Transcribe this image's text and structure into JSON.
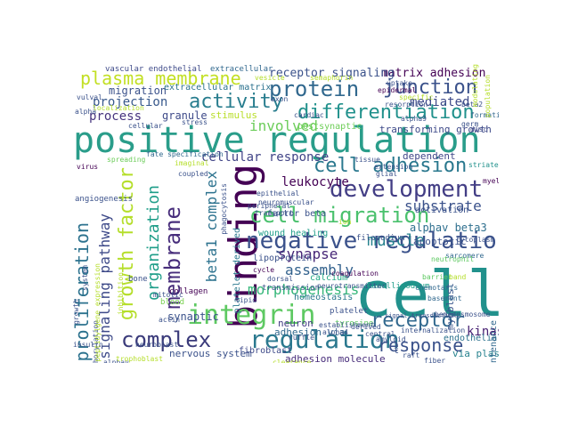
{
  "palette": {
    "background": "#ffffff",
    "dark_purple": "#440154",
    "indigo": "#3b528b",
    "blue": "#31688e",
    "teal": "#21918c",
    "green": "#35b779",
    "lime": "#90d743",
    "yellow": "#fde725"
  },
  "words": [
    {
      "text": "cell",
      "color": "#21918c"
    },
    {
      "text": "positive regulation",
      "color": "#2a9d8a"
    },
    {
      "text": "binding",
      "color": "#440154"
    },
    {
      "text": "integrin",
      "color": "#5ec962"
    },
    {
      "text": "regulation",
      "color": "#2a788e"
    },
    {
      "text": "negative regulation",
      "color": "#3b528b"
    },
    {
      "text": "development",
      "color": "#433e85"
    },
    {
      "text": "cell migration",
      "color": "#4ac16d"
    },
    {
      "text": "cell adhesion",
      "color": "#2a788e"
    },
    {
      "text": "protein",
      "color": "#31688e"
    },
    {
      "text": "complex",
      "color": "#3a3a7a"
    },
    {
      "text": "differentiation",
      "color": "#21918c"
    },
    {
      "text": "activity",
      "color": "#287d8e"
    },
    {
      "text": "plasma membrane",
      "color": "#c2df23"
    },
    {
      "text": "junction",
      "color": "#3b528b"
    },
    {
      "text": "membrane",
      "color": "#472d7b"
    },
    {
      "text": "growth factor",
      "color": "#b5de2b"
    },
    {
      "text": "receptor",
      "color": "#31688e"
    },
    {
      "text": "response",
      "color": "#3b528b"
    },
    {
      "text": "proliferation",
      "color": "#2c728e"
    },
    {
      "text": "signaling pathway",
      "color": "#3e4a89"
    },
    {
      "text": "organization",
      "color": "#1f9e89"
    },
    {
      "text": "beta1 complex",
      "color": "#2c728e"
    },
    {
      "text": "morphogenesis",
      "color": "#35b779"
    },
    {
      "text": "muscle",
      "color": "#26828e"
    },
    {
      "text": "assembly",
      "color": "#33628d"
    },
    {
      "text": "synapse",
      "color": "#482878"
    },
    {
      "text": "leukocyte",
      "color": "#440154"
    },
    {
      "text": "substrate",
      "color": "#3b528b"
    },
    {
      "text": "cellular response",
      "color": "#414487"
    },
    {
      "text": "involved",
      "color": "#6ccd5a"
    },
    {
      "text": "process",
      "color": "#46337e"
    },
    {
      "text": "projection",
      "color": "#38598c"
    },
    {
      "text": "migration",
      "color": "#3b528b"
    },
    {
      "text": "matrix adhesion",
      "color": "#440154"
    },
    {
      "text": "mediated",
      "color": "#3e4a89"
    },
    {
      "text": "receptor signaling",
      "color": "#3b528b"
    },
    {
      "text": "kinase",
      "color": "#482173"
    },
    {
      "text": "extracellular matrix",
      "color": "#2c728e"
    },
    {
      "text": "granule",
      "color": "#3e4a89"
    },
    {
      "text": "stimulus",
      "color": "#b8de29"
    },
    {
      "text": "postsynaptic",
      "color": "#6ece58"
    },
    {
      "text": "transforming growth",
      "color": "#3e4a89"
    },
    {
      "text": "dependent",
      "color": "#404688"
    },
    {
      "text": "platelet derived",
      "color": "#2a788e"
    },
    {
      "text": "alphav beta3",
      "color": "#2e6f8e"
    },
    {
      "text": "apoptotic",
      "color": "#3b528b"
    },
    {
      "text": "activation",
      "color": "#3b528b"
    },
    {
      "text": "factor beta",
      "color": "#3b528b"
    },
    {
      "text": "synaptic",
      "color": "#3b528b"
    },
    {
      "text": "adhesion via",
      "color": "#31688e"
    },
    {
      "text": "adhesion molecule",
      "color": "#472c7a"
    },
    {
      "text": "nervous system",
      "color": "#3b528b"
    },
    {
      "text": "endothelial",
      "color": "#2c728e"
    },
    {
      "text": "via plasma",
      "color": "#26828e"
    },
    {
      "text": "neuron",
      "color": "#433e85"
    },
    {
      "text": "fibroblast",
      "color": "#3e4a89"
    },
    {
      "text": "vascular endothelial",
      "color": "#3e4a89"
    },
    {
      "text": "extracellular",
      "color": "#31688e"
    },
    {
      "text": "wound healing",
      "color": "#1f9e89"
    },
    {
      "text": "lipoprotein",
      "color": "#3b528b"
    },
    {
      "text": "calcium",
      "color": "#22a884"
    },
    {
      "text": "homeostasis",
      "color": "#2a788e"
    },
    {
      "text": "myoblast",
      "color": "#39568c"
    },
    {
      "text": "maintenance",
      "color": "#31688e"
    },
    {
      "text": "collagen",
      "color": "#440154"
    },
    {
      "text": "blood",
      "color": "#7ad151"
    },
    {
      "text": "bone",
      "color": "#3b528b"
    },
    {
      "text": "platelet",
      "color": "#3b528b"
    },
    {
      "text": "tyrosine",
      "color": "#5ec962"
    },
    {
      "text": "lamellipodium",
      "color": "#1f9e89"
    },
    {
      "text": "filopodium",
      "color": "#3b528b"
    },
    {
      "text": "transmission",
      "color": "#3b528b"
    },
    {
      "text": "angiogenesis",
      "color": "#3b528b"
    },
    {
      "text": "virus",
      "color": "#440154"
    },
    {
      "text": "spreading",
      "color": "#6ccd5a"
    },
    {
      "text": "fate specification",
      "color": "#31688e"
    },
    {
      "text": "coupled",
      "color": "#3b528b"
    },
    {
      "text": "epidermal",
      "color": "#440154"
    },
    {
      "text": "formation",
      "color": "#31688e"
    },
    {
      "text": "disc",
      "color": "#3e4a89"
    },
    {
      "text": "germ",
      "color": "#3b528b"
    },
    {
      "text": "beta2",
      "color": "#3b528b"
    },
    {
      "text": "cardiac",
      "color": "#3b528b"
    },
    {
      "text": "alpha9",
      "color": "#3b528b"
    },
    {
      "text": "cellular",
      "color": "#3b528b"
    },
    {
      "text": "striated",
      "color": "#21918c"
    },
    {
      "text": "myelin",
      "color": "#440154"
    },
    {
      "text": "cytoplasm",
      "color": "#3b528b"
    },
    {
      "text": "sarcomere",
      "color": "#31688e"
    },
    {
      "text": "neutrophil",
      "color": "#5ec962"
    },
    {
      "text": "chemotaxis",
      "color": "#31688e"
    },
    {
      "text": "basement",
      "color": "#31688e"
    },
    {
      "text": "hemidesmosome",
      "color": "#3b528b"
    },
    {
      "text": "barrier",
      "color": "#5ec962"
    },
    {
      "text": "internalization",
      "color": "#3b528b"
    },
    {
      "text": "central",
      "color": "#3b528b"
    },
    {
      "text": "raft",
      "color": "#3b528b"
    },
    {
      "text": "fiber",
      "color": "#3b528b"
    },
    {
      "text": "amyloid",
      "color": "#3b528b"
    },
    {
      "text": "derived",
      "color": "#3b528b"
    },
    {
      "text": "clearance",
      "color": "#b5de2b"
    },
    {
      "text": "establishment",
      "color": "#3b528b"
    },
    {
      "text": "neurotransmitter",
      "color": "#3b528b"
    },
    {
      "text": "coagulation",
      "color": "#440154"
    },
    {
      "text": "ruffle",
      "color": "#3b528b"
    },
    {
      "text": "alpha4",
      "color": "#3b528b"
    },
    {
      "text": "cycle",
      "color": "#440154"
    },
    {
      "text": "dorsal",
      "color": "#3b528b"
    },
    {
      "text": "neuroblast",
      "color": "#3b528b"
    },
    {
      "text": "insulin",
      "color": "#3b528b"
    },
    {
      "text": "alphav",
      "color": "#3b528b"
    },
    {
      "text": "actin",
      "color": "#3b528b"
    },
    {
      "text": "lipid",
      "color": "#3b528b"
    },
    {
      "text": "growth",
      "color": "#3b528b"
    },
    {
      "text": "mitotic",
      "color": "#3b528b"
    },
    {
      "text": "system",
      "color": "#3b528b"
    },
    {
      "text": "phosphorylation",
      "color": "#3b528b"
    },
    {
      "text": "gene expression",
      "color": "#b5de2b"
    },
    {
      "text": "transport",
      "color": "#3b528b"
    },
    {
      "text": "peripheral",
      "color": "#3b528b"
    },
    {
      "text": "epithelial",
      "color": "#3b528b"
    },
    {
      "text": "neuromuscular",
      "color": "#3b528b"
    },
    {
      "text": "phagocytosis",
      "color": "#3b528b"
    },
    {
      "text": "tissue",
      "color": "#3b528b"
    },
    {
      "text": "extension",
      "color": "#3b528b"
    },
    {
      "text": "glial",
      "color": "#3b528b"
    },
    {
      "text": "imaginal",
      "color": "#b5de2b"
    },
    {
      "text": "resorption",
      "color": "#3b528b"
    },
    {
      "text": "specific",
      "color": "#b5de2b"
    },
    {
      "text": "uptake",
      "color": "#3b528b"
    },
    {
      "text": "axon",
      "color": "#3b528b"
    },
    {
      "text": "vesicle",
      "color": "#b5de2b"
    },
    {
      "text": "stress",
      "color": "#3b528b"
    },
    {
      "text": "alpha",
      "color": "#3b528b"
    },
    {
      "text": "vulval",
      "color": "#3b528b"
    },
    {
      "text": "localization",
      "color": "#b5de2b"
    },
    {
      "text": "semaphorin",
      "color": "#b5de2b"
    },
    {
      "text": "population",
      "color": "#b5de2b"
    },
    {
      "text": "modulating",
      "color": "#b5de2b"
    },
    {
      "text": "signal transduction",
      "color": "#3b528b"
    },
    {
      "text": "band",
      "color": "#b5de2b"
    },
    {
      "text": "inhibition",
      "color": "#b5de2b"
    },
    {
      "text": "peptidyl",
      "color": "#b5de2b"
    },
    {
      "text": "ion",
      "color": "#b5de2b"
    },
    {
      "text": "trophoblast",
      "color": "#b5de2b"
    },
    {
      "text": "t",
      "color": "#3b528b"
    }
  ]
}
